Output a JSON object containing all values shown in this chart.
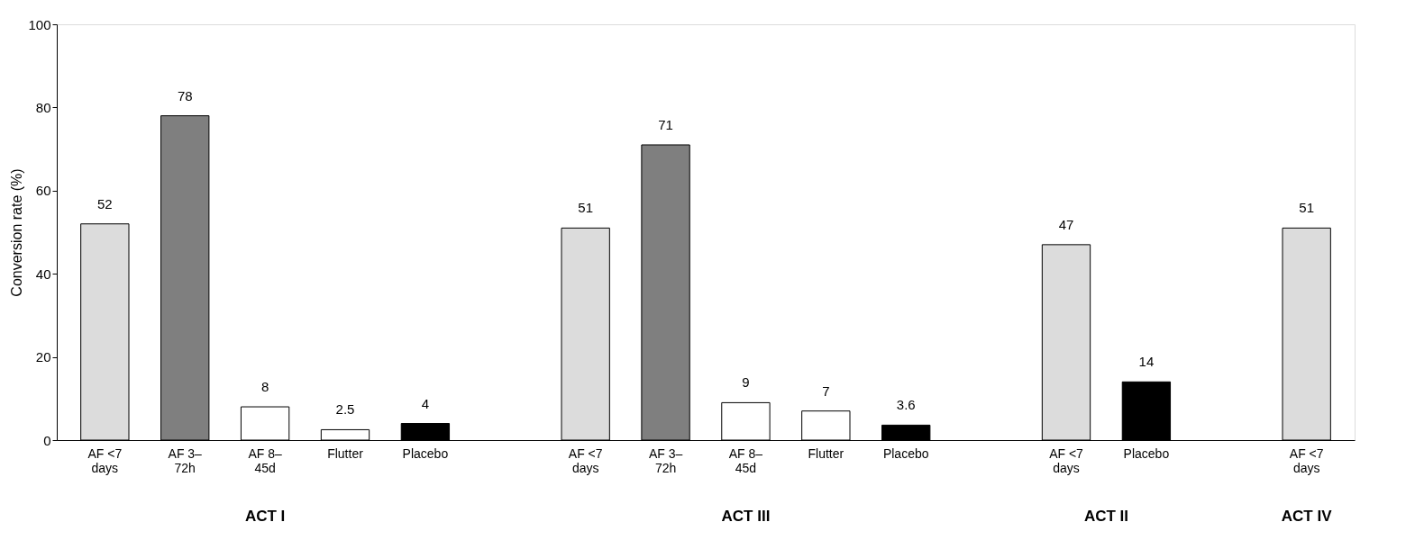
{
  "chart_data": {
    "type": "bar",
    "ylabel": "Conversion rate (%)",
    "categories": [
      "AF <7 days",
      "AF 3–72h",
      "AF 8–45d",
      "Flutter",
      "Placebo",
      null,
      "AF <7 days",
      "AF 3–72h",
      "AF 8–45d",
      "Flutter",
      "Placebo",
      null,
      "AF <7 days",
      "Placebo",
      null,
      "AF <7 days"
    ],
    "values": [
      52,
      78,
      8,
      2.5,
      4,
      null,
      51,
      71,
      9,
      7,
      3.6,
      null,
      47,
      14,
      null,
      51
    ],
    "colors": [
      "#dcdcdc",
      "#7f7f7f",
      "#ffffff",
      "#ffffff",
      "#000000",
      null,
      "#dcdcdc",
      "#7f7f7f",
      "#ffffff",
      "#ffffff",
      "#000000",
      null,
      "#dcdcdc",
      "#000000",
      null,
      "#dcdcdc"
    ],
    "ylim": [
      0,
      100
    ],
    "yticks": [
      0,
      20,
      40,
      60,
      80,
      100
    ],
    "data_labels": true,
    "annotations": [
      "ACT I",
      "ACT III",
      "ACT II",
      "ACT IV"
    ]
  }
}
